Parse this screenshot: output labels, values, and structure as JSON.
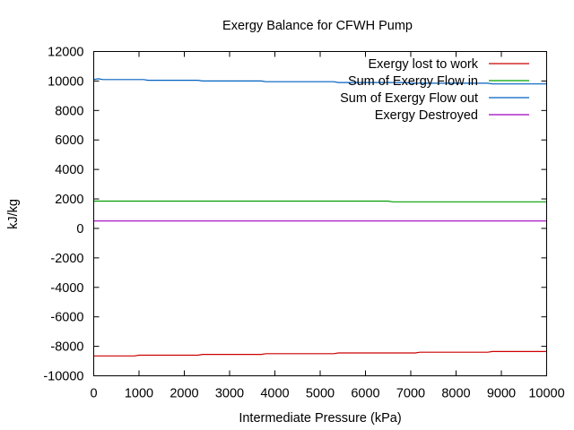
{
  "chart_data": {
    "type": "line",
    "title": "Exergy Balance for CFWH Pump",
    "xlabel": "Intermediate Pressure (kPa)",
    "ylabel": "kJ/kg",
    "xlim": [
      0,
      10000
    ],
    "ylim": [
      -10000,
      12000
    ],
    "xticks": [
      "0",
      "1000",
      "2000",
      "3000",
      "4000",
      "5000",
      "6000",
      "7000",
      "8000",
      "9000",
      "10000"
    ],
    "yticks": [
      "-10000",
      "-8000",
      "-6000",
      "-4000",
      "-2000",
      "0",
      "2000",
      "4000",
      "6000",
      "8000",
      "10000",
      "12000"
    ],
    "legend_position": "top-right",
    "grid": false,
    "x": [
      0,
      100,
      200,
      300,
      400,
      500,
      600,
      700,
      800,
      900,
      1000,
      1100,
      1200,
      1300,
      1400,
      1500,
      1600,
      1700,
      1800,
      1900,
      2000,
      2100,
      2200,
      2300,
      2400,
      2500,
      2600,
      2700,
      2800,
      2900,
      3000,
      3100,
      3200,
      3300,
      3400,
      3500,
      3600,
      3700,
      3800,
      3900,
      4000,
      4100,
      4200,
      4300,
      4400,
      4500,
      4600,
      4700,
      4800,
      4900,
      5000,
      5100,
      5200,
      5300,
      5400,
      5500,
      5600,
      5700,
      5800,
      5900,
      6000,
      6100,
      6200,
      6300,
      6400,
      6500,
      6600,
      6700,
      6800,
      6900,
      7000,
      7100,
      7200,
      7300,
      7400,
      7500,
      7600,
      7700,
      7800,
      7900,
      8000,
      8100,
      8200,
      8300,
      8400,
      8500,
      8600,
      8700,
      8800,
      8900,
      9000,
      9100,
      9200,
      9300,
      9400,
      9500,
      9600,
      9700,
      9800,
      9900,
      10000
    ],
    "series": [
      {
        "name": "Exergy lost to work",
        "color": "#cc0000",
        "values": [
          -8650,
          -8650,
          -8650,
          -8650,
          -8650,
          -8650,
          -8650,
          -8650,
          -8650,
          -8650,
          -8600,
          -8600,
          -8600,
          -8600,
          -8600,
          -8600,
          -8600,
          -8600,
          -8600,
          -8600,
          -8600,
          -8600,
          -8600,
          -8600,
          -8550,
          -8550,
          -8550,
          -8550,
          -8550,
          -8550,
          -8550,
          -8550,
          -8550,
          -8550,
          -8550,
          -8550,
          -8550,
          -8550,
          -8500,
          -8500,
          -8500,
          -8500,
          -8500,
          -8500,
          -8500,
          -8500,
          -8500,
          -8500,
          -8500,
          -8500,
          -8500,
          -8500,
          -8500,
          -8500,
          -8450,
          -8450,
          -8450,
          -8450,
          -8450,
          -8450,
          -8450,
          -8450,
          -8450,
          -8450,
          -8450,
          -8450,
          -8450,
          -8450,
          -8450,
          -8450,
          -8450,
          -8450,
          -8400,
          -8400,
          -8400,
          -8400,
          -8400,
          -8400,
          -8400,
          -8400,
          -8400,
          -8400,
          -8400,
          -8400,
          -8400,
          -8400,
          -8400,
          -8400,
          -8350,
          -8350,
          -8350,
          -8350,
          -8350,
          -8350,
          -8350,
          -8350,
          -8350,
          -8350,
          -8350,
          -8350,
          -8350
        ]
      },
      {
        "name": "Sum of Exergy Flow in",
        "color": "#00a000",
        "values": [
          1850,
          1850,
          1850,
          1850,
          1850,
          1850,
          1850,
          1850,
          1850,
          1850,
          1850,
          1850,
          1850,
          1850,
          1850,
          1850,
          1850,
          1850,
          1850,
          1850,
          1850,
          1850,
          1850,
          1850,
          1850,
          1850,
          1850,
          1850,
          1850,
          1850,
          1850,
          1850,
          1850,
          1850,
          1850,
          1850,
          1850,
          1850,
          1850,
          1850,
          1850,
          1850,
          1850,
          1850,
          1850,
          1850,
          1850,
          1850,
          1850,
          1850,
          1850,
          1850,
          1850,
          1850,
          1850,
          1850,
          1850,
          1850,
          1850,
          1850,
          1850,
          1850,
          1850,
          1850,
          1850,
          1850,
          1800,
          1800,
          1800,
          1800,
          1800,
          1800,
          1800,
          1800,
          1800,
          1800,
          1800,
          1800,
          1800,
          1800,
          1800,
          1800,
          1800,
          1800,
          1800,
          1800,
          1800,
          1800,
          1800,
          1800,
          1800,
          1800,
          1800,
          1800,
          1800,
          1800,
          1800,
          1800,
          1800,
          1800,
          1800
        ]
      },
      {
        "name": "Sum of Exergy Flow out",
        "color": "#0060c0",
        "values": [
          10100,
          10150,
          10100,
          10100,
          10100,
          10100,
          10100,
          10100,
          10100,
          10100,
          10100,
          10100,
          10050,
          10050,
          10050,
          10050,
          10050,
          10050,
          10050,
          10050,
          10050,
          10050,
          10050,
          10050,
          10000,
          10000,
          10000,
          10000,
          10000,
          10000,
          10000,
          10000,
          10000,
          10000,
          10000,
          10000,
          10000,
          10000,
          9950,
          9950,
          9950,
          9950,
          9950,
          9950,
          9950,
          9950,
          9950,
          9950,
          9950,
          9950,
          9950,
          9950,
          9950,
          9950,
          9900,
          9900,
          9900,
          9900,
          9900,
          9900,
          9900,
          9900,
          9900,
          9900,
          9900,
          9900,
          9900,
          9900,
          9900,
          9900,
          9850,
          9850,
          9850,
          9850,
          9850,
          9850,
          9850,
          9850,
          9850,
          9850,
          9850,
          9850,
          9850,
          9850,
          9850,
          9850,
          9850,
          9850,
          9800,
          9800,
          9800,
          9800,
          9800,
          9800,
          9800,
          9800,
          9800,
          9800,
          9800,
          9800,
          9800
        ]
      },
      {
        "name": "Exergy Destroyed",
        "color": "#a000c0",
        "values": [
          500,
          500,
          500,
          500,
          500,
          500,
          500,
          500,
          500,
          500,
          500,
          500,
          500,
          500,
          500,
          500,
          500,
          500,
          500,
          500,
          500,
          500,
          500,
          500,
          500,
          500,
          500,
          500,
          500,
          500,
          500,
          500,
          500,
          500,
          500,
          500,
          500,
          500,
          500,
          500,
          500,
          500,
          500,
          500,
          500,
          500,
          500,
          500,
          500,
          500,
          500,
          500,
          500,
          500,
          500,
          500,
          500,
          500,
          500,
          500,
          500,
          500,
          500,
          500,
          500,
          500,
          500,
          500,
          500,
          500,
          500,
          500,
          500,
          500,
          500,
          500,
          500,
          500,
          500,
          500,
          500,
          500,
          500,
          500,
          500,
          500,
          500,
          500,
          500,
          500,
          500,
          500,
          500,
          500,
          500,
          500,
          500,
          500,
          500,
          500,
          500
        ]
      }
    ]
  }
}
